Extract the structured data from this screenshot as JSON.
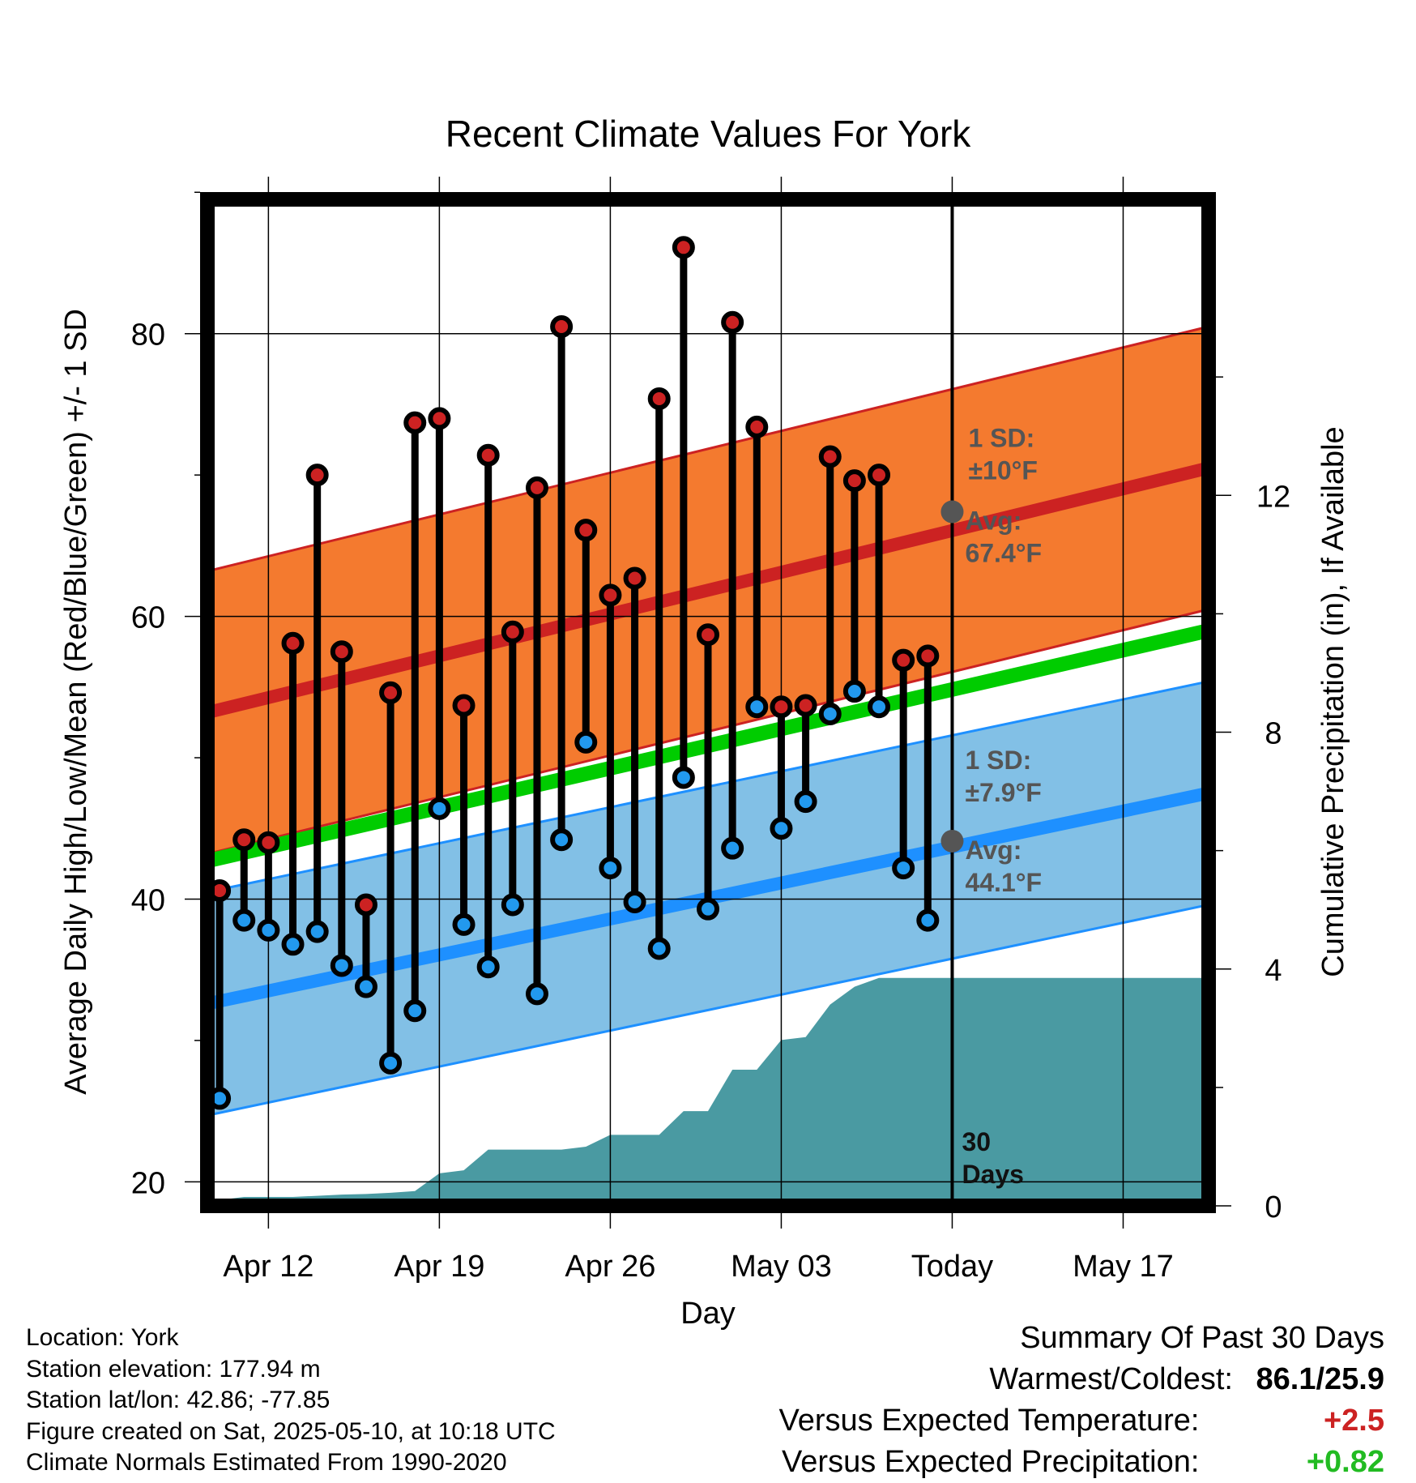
{
  "chart_data": {
    "type": "scatter",
    "title": "Recent Climate Values For York",
    "xlabel": "Day",
    "ylabel": "Average Daily High/Low/Mean (Red/Blue/Green) +/- 1 SD",
    "y2label": "Cumulative Precipitation (in), If Available",
    "x_tick_labels": [
      "Apr 12",
      "Apr 19",
      "Apr 26",
      "May 03",
      "Today",
      "May 17"
    ],
    "x_tick_days": [
      2,
      9,
      16,
      23,
      30,
      37
    ],
    "xlim_days": [
      -0.5,
      40.5
    ],
    "ylim": [
      18.3,
      89.5
    ],
    "y_ticks": [
      20,
      40,
      60,
      80
    ],
    "y2lim": [
      0,
      17.0
    ],
    "y2_ticks": [
      0,
      4,
      8,
      12
    ],
    "today_label": [
      "30",
      "Days"
    ],
    "days": [
      0,
      1,
      2,
      3,
      4,
      5,
      6,
      7,
      8,
      9,
      10,
      11,
      12,
      13,
      14,
      15,
      16,
      17,
      18,
      19,
      20,
      21,
      22,
      23,
      24,
      25,
      26,
      27,
      28,
      29
    ],
    "series": [
      {
        "name": "High",
        "color": "#cc2222",
        "values": [
          40.6,
          44.2,
          44.0,
          58.1,
          70.0,
          57.5,
          39.6,
          54.6,
          73.7,
          74.0,
          53.7,
          71.4,
          58.9,
          69.1,
          80.5,
          66.1,
          61.5,
          62.7,
          75.4,
          86.1,
          58.7,
          80.8,
          73.4,
          53.6,
          53.7,
          71.3,
          69.6,
          70.0,
          56.9,
          57.2
        ]
      },
      {
        "name": "Low",
        "color": "#2299ee",
        "values": [
          25.9,
          38.5,
          37.8,
          36.8,
          37.7,
          35.3,
          33.8,
          28.4,
          32.1,
          46.4,
          38.2,
          35.2,
          39.6,
          33.3,
          44.2,
          51.1,
          42.2,
          39.8,
          36.5,
          48.6,
          39.3,
          43.6,
          53.6,
          45.0,
          46.9,
          53.1,
          54.7,
          53.6,
          42.2,
          38.5
        ]
      },
      {
        "name": "Normal High Avg",
        "color": "#cc2222",
        "band_color": "#f47a2f",
        "start": 53.2,
        "end": 70.5,
        "sd": 10
      },
      {
        "name": "Normal Low Avg",
        "color": "#1e90ff",
        "band_color": "#82c0e6",
        "start": 32.6,
        "end": 47.5,
        "sd": 7.9
      },
      {
        "name": "Normal Mean",
        "color": "#00cc00",
        "start": 42.7,
        "end": 59.0
      },
      {
        "name": "Cumulative Precipitation",
        "color": "#4a9aa2",
        "x": [
          -0.5,
          0,
          1,
          2,
          3,
          4,
          5,
          6,
          7,
          8,
          9,
          10,
          11,
          12,
          13,
          14,
          15,
          16,
          17,
          18,
          19,
          20,
          21,
          22,
          23,
          24,
          25,
          26,
          27,
          28,
          29,
          30,
          40.5
        ],
        "values": [
          0.0,
          0.1,
          0.15,
          0.15,
          0.15,
          0.17,
          0.19,
          0.2,
          0.22,
          0.25,
          0.55,
          0.6,
          0.95,
          0.95,
          0.95,
          0.95,
          1.0,
          1.2,
          1.2,
          1.2,
          1.6,
          1.6,
          2.3,
          2.3,
          2.8,
          2.85,
          3.4,
          3.7,
          3.85,
          3.85,
          3.85,
          3.85,
          3.85
        ]
      }
    ],
    "annotations": {
      "high_sd": [
        "1 SD:",
        "±10°F"
      ],
      "high_avg": [
        "Avg:",
        "67.4°F"
      ],
      "low_sd": [
        "1 SD:",
        "±7.9°F"
      ],
      "low_avg": [
        "Avg:",
        "44.1°F"
      ],
      "high_avg_value": 67.4,
      "low_avg_value": 44.1
    },
    "grid": true
  },
  "footer": {
    "location": "Location: York",
    "elevation": "Station elevation: 177.94 m",
    "latlon": "Station lat/lon: 42.86; -77.85",
    "created": "Figure created on Sat, 2025-05-10, at 10:18 UTC",
    "normals": "Climate Normals Estimated From 1990-2020"
  },
  "summary": {
    "heading": "Summary Of Past 30 Days",
    "warmest_label": "Warmest/Coldest:",
    "warmest_value": "86.1/25.9",
    "temp_label": "Versus Expected Temperature:",
    "temp_value": "+2.5",
    "temp_color": "#cc2222",
    "precip_label": "Versus Expected Precipitation:",
    "precip_value": "+0.82",
    "precip_color": "#22bb22"
  }
}
